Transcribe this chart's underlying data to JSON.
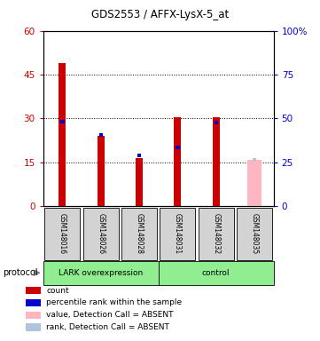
{
  "title": "GDS2553 / AFFX-LysX-5_at",
  "samples": [
    "GSM148016",
    "GSM148026",
    "GSM148028",
    "GSM148031",
    "GSM148032",
    "GSM148035"
  ],
  "red_values": [
    49,
    24,
    16.5,
    30.5,
    30.5,
    0
  ],
  "blue_values": [
    29,
    24.5,
    17.5,
    20,
    28.5,
    0
  ],
  "pink_value": 16,
  "light_blue_value": 16,
  "absent_sample_idx": 5,
  "left_ylim": [
    0,
    60
  ],
  "right_ylim": [
    0,
    100
  ],
  "left_yticks": [
    0,
    15,
    30,
    45,
    60
  ],
  "right_yticks": [
    0,
    25,
    50,
    75,
    100
  ],
  "right_yticklabels": [
    "0",
    "25",
    "50",
    "75",
    "100%"
  ],
  "red_color": "#CC0000",
  "blue_color": "#0000CC",
  "pink_color": "#FFB6C1",
  "light_blue_color": "#B0C4DE",
  "tick_color_left": "#CC0000",
  "tick_color_right": "#0000CC",
  "legend_items": [
    {
      "color": "#CC0000",
      "label": "count"
    },
    {
      "color": "#0000CC",
      "label": "percentile rank within the sample"
    },
    {
      "color": "#FFB6C1",
      "label": "value, Detection Call = ABSENT"
    },
    {
      "color": "#B0C4DE",
      "label": "rank, Detection Call = ABSENT"
    }
  ]
}
